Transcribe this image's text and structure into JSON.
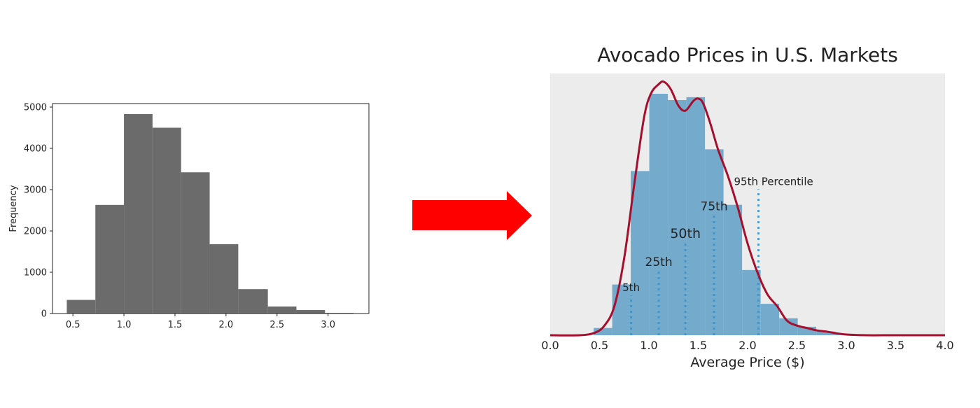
{
  "chart_data": [
    {
      "id": "left",
      "type": "bar",
      "title": "",
      "xlabel": "",
      "ylabel": "Frequency",
      "bin_edges": [
        0.44,
        0.72,
        1.0,
        1.28,
        1.56,
        1.84,
        2.12,
        2.41,
        2.69,
        2.97,
        3.25
      ],
      "values": [
        330,
        2630,
        4830,
        4500,
        3420,
        1680,
        590,
        170,
        85,
        15
      ],
      "xlim": [
        0.3,
        3.4
      ],
      "ylim": [
        0,
        5080
      ],
      "xticks": [
        0.5,
        1.0,
        1.5,
        2.0,
        2.5,
        3.0
      ],
      "xtick_labels": [
        "0.5",
        "1.0",
        "1.5",
        "2.0",
        "2.5",
        "3.0"
      ],
      "yticks": [
        0,
        1000,
        2000,
        3000,
        4000,
        5000
      ],
      "ytick_labels": [
        "0",
        "1000",
        "2000",
        "3000",
        "4000",
        "5000"
      ],
      "grid": false,
      "bar_color": "#6b6b6b"
    },
    {
      "id": "right",
      "type": "bar",
      "title": "Avocado Prices in U.S. Markets",
      "xlabel": "Average Price ($)",
      "ylabel": "",
      "bin_width": 0.188,
      "bin_start": 0.44,
      "values": [
        0.03,
        0.21,
        0.68,
        1.0,
        0.974,
        0.986,
        0.77,
        0.54,
        0.27,
        0.13,
        0.07,
        0.035,
        0.015,
        0.006,
        0.002
      ],
      "kde": {
        "x": [
          0.0,
          0.3,
          0.45,
          0.55,
          0.65,
          0.75,
          0.85,
          0.95,
          1.02,
          1.1,
          1.15,
          1.22,
          1.3,
          1.37,
          1.45,
          1.5,
          1.55,
          1.62,
          1.7,
          1.8,
          1.9,
          2.0,
          2.1,
          2.2,
          2.3,
          2.4,
          2.5,
          2.6,
          2.7,
          2.8,
          2.9,
          3.0,
          3.2,
          3.5,
          4.0
        ],
        "y": [
          0.0,
          0.0,
          0.01,
          0.04,
          0.12,
          0.32,
          0.62,
          0.9,
          1.0,
          1.04,
          1.05,
          1.02,
          0.95,
          0.93,
          0.97,
          0.98,
          0.96,
          0.88,
          0.77,
          0.66,
          0.53,
          0.38,
          0.26,
          0.17,
          0.12,
          0.06,
          0.04,
          0.03,
          0.02,
          0.015,
          0.008,
          0.003,
          0.0,
          0.0,
          0.0
        ],
        "color": "#a50f2d"
      },
      "percentiles": [
        {
          "label": "5th",
          "value": 0.82,
          "height": 0.165,
          "font": 15
        },
        {
          "label": "25th",
          "value": 1.1,
          "height": 0.27,
          "font": 17
        },
        {
          "label": "50th",
          "value": 1.37,
          "height": 0.385,
          "font": 19
        },
        {
          "label": "75th",
          "value": 1.66,
          "height": 0.5,
          "font": 17
        },
        {
          "label": "95th Percentile",
          "value": 2.11,
          "height": 0.605,
          "font": 15
        }
      ],
      "xlim": [
        0.0,
        4.0
      ],
      "xticks": [
        0.0,
        0.5,
        1.0,
        1.5,
        2.0,
        2.5,
        3.0,
        3.5,
        4.0
      ],
      "xtick_labels": [
        "0.0",
        "0.5",
        "1.0",
        "1.5",
        "2.0",
        "2.5",
        "3.0",
        "3.5",
        "4.0"
      ],
      "grid": false,
      "bar_color": "#74abcd",
      "line_color": "#a50f2d",
      "percentile_line_color": "#3e8fc6",
      "background": "#ececec"
    }
  ],
  "arrow": {
    "color": "#ff0000",
    "direction": "right"
  }
}
